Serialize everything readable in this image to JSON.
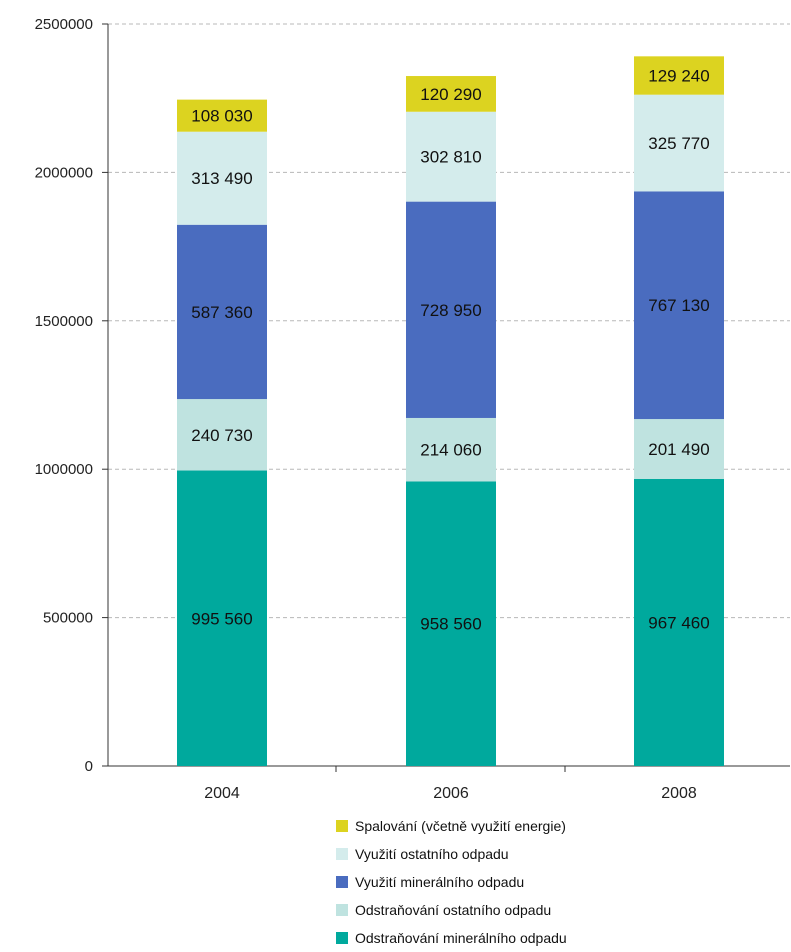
{
  "chart_data": {
    "type": "bar",
    "stacked": true,
    "categories": [
      "2004",
      "2006",
      "2008"
    ],
    "ylim": [
      0,
      2500000
    ],
    "yticks": [
      0,
      500000,
      1000000,
      1500000,
      2000000,
      2500000
    ],
    "ytick_labels": [
      "0",
      "500000",
      "1000000",
      "1500000",
      "2000000",
      "2500000"
    ],
    "grid": true,
    "legend_position": "bottom",
    "series": [
      {
        "name": "Odstraňování minerálního odpadu",
        "color": "#00a99d",
        "values": [
          995560,
          958560,
          967460
        ],
        "labels": [
          "995 560",
          "958 560",
          "967 460"
        ]
      },
      {
        "name": "Odstraňování ostatního odpadu",
        "color": "#bfe3e0",
        "values": [
          240730,
          214060,
          201490
        ],
        "labels": [
          "240 730",
          "214 060",
          "201 490"
        ]
      },
      {
        "name": "Využití minerálního odpadu",
        "color": "#4a6cbf",
        "values": [
          587360,
          728950,
          767130
        ],
        "labels": [
          "587 360",
          "728 950",
          "767 130"
        ]
      },
      {
        "name": "Využití ostatního odpadu",
        "color": "#d4ecec",
        "values": [
          313490,
          302810,
          325770
        ],
        "labels": [
          "313 490",
          "302 810",
          "325 770"
        ]
      },
      {
        "name": "Spalování (včetně využití energie)",
        "color": "#dcd320",
        "values": [
          108030,
          120290,
          129240
        ],
        "labels": [
          "108 030",
          "120 290",
          "129 240"
        ]
      }
    ]
  }
}
